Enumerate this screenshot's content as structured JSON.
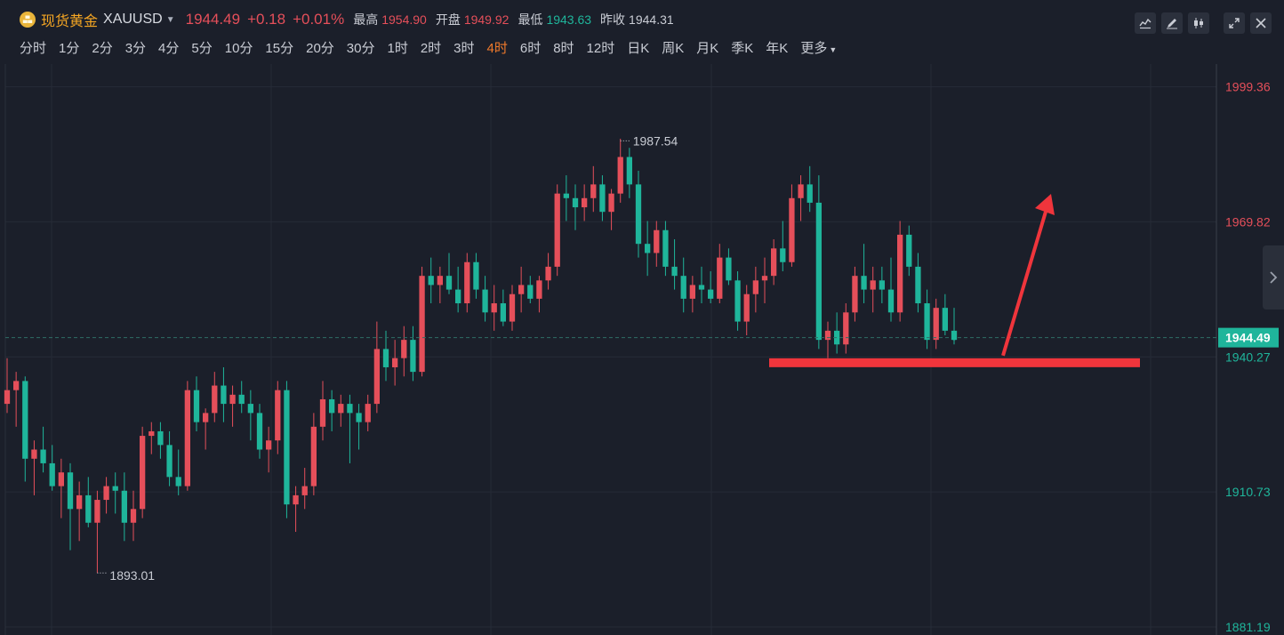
{
  "header": {
    "name": "现货黄金",
    "code": "XAUUSD",
    "last": "1944.49",
    "change": "+0.18",
    "change_pct": "+0.01%",
    "high_label": "最高",
    "high": "1954.90",
    "open_label": "开盘",
    "open": "1949.92",
    "low_label": "最低",
    "low": "1943.63",
    "prev_label": "昨收",
    "prev": "1944.31"
  },
  "timeframes": [
    "分时",
    "1分",
    "2分",
    "3分",
    "4分",
    "5分",
    "10分",
    "15分",
    "20分",
    "30分",
    "1时",
    "2时",
    "3时",
    "4时",
    "6时",
    "8时",
    "12时",
    "日K",
    "周K",
    "月K",
    "季K",
    "年K",
    "更多"
  ],
  "active_timeframe": "4时",
  "toolbar_icons": [
    "line-chart-icon",
    "draw-pen-icon",
    "candlestick-icon",
    "expand-icon",
    "close-icon"
  ],
  "colors": {
    "up": "#e54f5a",
    "down": "#1fb59b",
    "accent": "#f07a2b",
    "annotation": "#f0353c"
  },
  "chart_data": {
    "type": "candlestick",
    "y_axis_ticks": [
      "1999.36",
      "1969.82",
      "1940.27",
      "1910.73",
      "1881.19"
    ],
    "y_tick_values": [
      1999.36,
      1969.82,
      1940.27,
      1910.73,
      1881.19
    ],
    "ylim": [
      1881.19,
      2002.0
    ],
    "last_price": "1944.49",
    "last_price_value": 1944.49,
    "max_label": "1987.54",
    "max_value": 1987.54,
    "min_label": "1893.01",
    "min_value": 1893.01,
    "support_level": 1939.0,
    "ohlc": [
      [
        1930,
        1940,
        1928,
        1933
      ],
      [
        1933,
        1937,
        1925,
        1935
      ],
      [
        1935,
        1936,
        1913,
        1918
      ],
      [
        1918,
        1922,
        1910,
        1920
      ],
      [
        1920,
        1925,
        1915,
        1917
      ],
      [
        1917,
        1921,
        1911,
        1912
      ],
      [
        1912,
        1918,
        1905,
        1915
      ],
      [
        1915,
        1917,
        1898,
        1907
      ],
      [
        1907,
        1913,
        1900,
        1910
      ],
      [
        1910,
        1914,
        1903,
        1904
      ],
      [
        1904,
        1911,
        1893,
        1909
      ],
      [
        1909,
        1914,
        1906,
        1912
      ],
      [
        1912,
        1915,
        1906,
        1911
      ],
      [
        1911,
        1915,
        1900,
        1904
      ],
      [
        1904,
        1911,
        1900,
        1907
      ],
      [
        1907,
        1925,
        1905,
        1923
      ],
      [
        1923,
        1926,
        1919,
        1924
      ],
      [
        1924,
        1926,
        1918,
        1921
      ],
      [
        1921,
        1924,
        1912,
        1914
      ],
      [
        1914,
        1920,
        1910,
        1912
      ],
      [
        1912,
        1935,
        1911,
        1933
      ],
      [
        1933,
        1936,
        1924,
        1926
      ],
      [
        1926,
        1929,
        1920,
        1928
      ],
      [
        1928,
        1937,
        1926,
        1934
      ],
      [
        1934,
        1938,
        1926,
        1930
      ],
      [
        1930,
        1934,
        1925,
        1932
      ],
      [
        1932,
        1935,
        1928,
        1930
      ],
      [
        1930,
        1933,
        1922,
        1928
      ],
      [
        1928,
        1930,
        1918,
        1920
      ],
      [
        1920,
        1925,
        1915,
        1922
      ],
      [
        1922,
        1935,
        1919,
        1933
      ],
      [
        1933,
        1935,
        1905,
        1908
      ],
      [
        1908,
        1912,
        1902,
        1910
      ],
      [
        1910,
        1916,
        1907,
        1912
      ],
      [
        1912,
        1928,
        1910,
        1925
      ],
      [
        1925,
        1935,
        1922,
        1931
      ],
      [
        1931,
        1933,
        1924,
        1928
      ],
      [
        1928,
        1932,
        1925,
        1930
      ],
      [
        1930,
        1932,
        1917,
        1928
      ],
      [
        1928,
        1930,
        1920,
        1926
      ],
      [
        1926,
        1932,
        1924,
        1930
      ],
      [
        1930,
        1948,
        1928,
        1942
      ],
      [
        1942,
        1946,
        1935,
        1938
      ],
      [
        1938,
        1944,
        1934,
        1940
      ],
      [
        1940,
        1947,
        1936,
        1944
      ],
      [
        1944,
        1947,
        1935,
        1937
      ],
      [
        1937,
        1960,
        1936,
        1958
      ],
      [
        1958,
        1962,
        1952,
        1956
      ],
      [
        1956,
        1960,
        1952,
        1958
      ],
      [
        1958,
        1963,
        1954,
        1955
      ],
      [
        1955,
        1960,
        1950,
        1952
      ],
      [
        1952,
        1963,
        1950,
        1961
      ],
      [
        1961,
        1963,
        1953,
        1955
      ],
      [
        1955,
        1958,
        1948,
        1950
      ],
      [
        1950,
        1956,
        1946,
        1952
      ],
      [
        1952,
        1955,
        1947,
        1948
      ],
      [
        1948,
        1956,
        1946,
        1954
      ],
      [
        1954,
        1960,
        1950,
        1956
      ],
      [
        1956,
        1958,
        1952,
        1953
      ],
      [
        1953,
        1958,
        1950,
        1957
      ],
      [
        1957,
        1963,
        1955,
        1960
      ],
      [
        1960,
        1978,
        1958,
        1976
      ],
      [
        1976,
        1980,
        1970,
        1975
      ],
      [
        1975,
        1978,
        1968,
        1973
      ],
      [
        1973,
        1978,
        1970,
        1975
      ],
      [
        1975,
        1982,
        1972,
        1978
      ],
      [
        1978,
        1980,
        1970,
        1972
      ],
      [
        1972,
        1977,
        1968,
        1976
      ],
      [
        1976,
        1988,
        1974,
        1984
      ],
      [
        1984,
        1986,
        1975,
        1978
      ],
      [
        1978,
        1981,
        1962,
        1965
      ],
      [
        1965,
        1970,
        1958,
        1963
      ],
      [
        1963,
        1970,
        1960,
        1968
      ],
      [
        1968,
        1970,
        1958,
        1960
      ],
      [
        1960,
        1966,
        1955,
        1958
      ],
      [
        1958,
        1962,
        1950,
        1953
      ],
      [
        1953,
        1958,
        1950,
        1956
      ],
      [
        1956,
        1960,
        1952,
        1955
      ],
      [
        1955,
        1959,
        1952,
        1953
      ],
      [
        1953,
        1965,
        1952,
        1962
      ],
      [
        1962,
        1964,
        1956,
        1957
      ],
      [
        1957,
        1959,
        1946,
        1948
      ],
      [
        1948,
        1956,
        1945,
        1954
      ],
      [
        1954,
        1960,
        1950,
        1957
      ],
      [
        1957,
        1962,
        1952,
        1958
      ],
      [
        1958,
        1966,
        1956,
        1964
      ],
      [
        1964,
        1970,
        1959,
        1961
      ],
      [
        1961,
        1978,
        1960,
        1975
      ],
      [
        1975,
        1980,
        1970,
        1978
      ],
      [
        1978,
        1982,
        1972,
        1974
      ],
      [
        1974,
        1980,
        1942,
        1944
      ],
      [
        1944,
        1948,
        1940,
        1946
      ],
      [
        1946,
        1950,
        1941,
        1943
      ],
      [
        1943,
        1952,
        1941,
        1950
      ],
      [
        1950,
        1960,
        1948,
        1958
      ],
      [
        1958,
        1965,
        1952,
        1955
      ],
      [
        1955,
        1960,
        1950,
        1957
      ],
      [
        1957,
        1960,
        1952,
        1955
      ],
      [
        1955,
        1962,
        1948,
        1950
      ],
      [
        1950,
        1970,
        1948,
        1967
      ],
      [
        1967,
        1969,
        1958,
        1960
      ],
      [
        1960,
        1963,
        1950,
        1952
      ],
      [
        1952,
        1955,
        1942,
        1944
      ],
      [
        1944,
        1953,
        1942,
        1951
      ],
      [
        1951,
        1954,
        1945,
        1946
      ],
      [
        1946,
        1951,
        1943,
        1944
      ]
    ]
  }
}
